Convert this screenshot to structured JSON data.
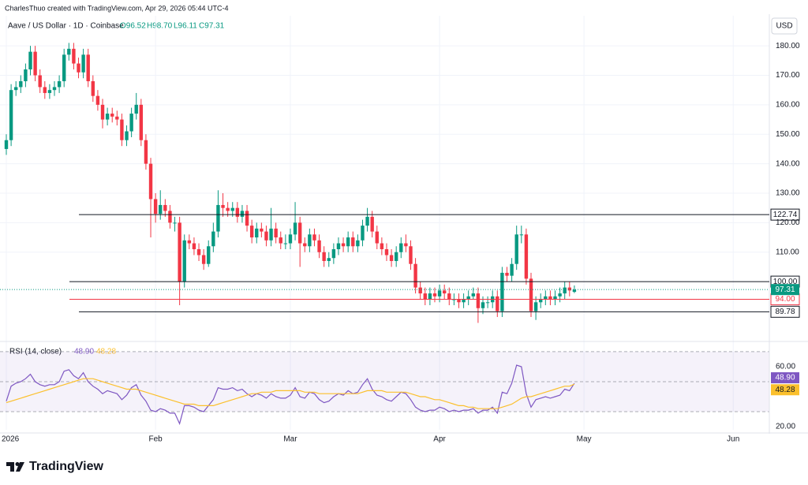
{
  "header": {
    "attribution": "CharlesThuo created with TradingView.com, Apr 29, 2026 05:44 UTC-4",
    "symbol": "Aave / US Dollar · 1D · Coinbase",
    "ohlc": [
      "O96.52",
      "H98.70",
      "L96.11",
      "C97.31"
    ],
    "currency": "USD"
  },
  "chart_data": [
    {
      "type": "candlestick",
      "up_color": "#089981",
      "down_color": "#f23645",
      "open": [
        145,
        148,
        165,
        166,
        168,
        172,
        178,
        170,
        166,
        164,
        165,
        166,
        168,
        177,
        179,
        174,
        171,
        177,
        168,
        163,
        160,
        155,
        157,
        156,
        155,
        148,
        151,
        157,
        160,
        148,
        140,
        128,
        123,
        126,
        124,
        120,
        120,
        100,
        114,
        113,
        111,
        109,
        106,
        112,
        117,
        126,
        125,
        124,
        125,
        122,
        124,
        119,
        115,
        118,
        117,
        114,
        118,
        115,
        113,
        113,
        116,
        120,
        113,
        112,
        116,
        114,
        110,
        107,
        108,
        111,
        113,
        112,
        115,
        112,
        114,
        119,
        122,
        117,
        113,
        111,
        109,
        107,
        110,
        113,
        112,
        106,
        98,
        96,
        94,
        96,
        95,
        97,
        96,
        94,
        94,
        93,
        94,
        95,
        96,
        91,
        93,
        93,
        95,
        90,
        103,
        102,
        106,
        116,
        116,
        101,
        90,
        93,
        94,
        95,
        94,
        95,
        96,
        98,
        96.52
      ],
      "high": [
        150,
        167,
        168,
        170,
        174,
        180,
        180,
        172,
        168,
        167,
        168,
        170,
        179,
        181,
        181,
        176,
        179,
        179,
        170,
        165,
        162,
        159,
        159,
        158,
        157,
        153,
        159,
        164,
        162,
        150,
        142,
        130,
        131,
        128,
        126,
        122,
        122,
        116,
        116,
        115,
        113,
        111,
        114,
        120,
        131,
        130,
        127,
        127,
        127,
        126,
        126,
        121,
        120,
        120,
        119,
        125,
        120,
        117,
        116,
        118,
        127,
        122,
        115,
        118,
        118,
        116,
        112,
        110,
        113,
        115,
        115,
        117,
        117,
        116,
        121,
        125,
        124,
        119,
        115,
        113,
        111,
        112,
        115,
        116,
        114,
        108,
        100,
        98,
        98,
        98,
        99,
        99,
        98,
        96,
        96,
        96,
        97,
        98,
        98,
        95,
        95,
        97,
        97,
        105,
        105,
        108,
        119,
        119,
        118,
        103,
        95,
        96,
        97,
        97,
        97,
        98,
        100,
        100,
        98.7
      ],
      "low": [
        143,
        146,
        163,
        164,
        166,
        170,
        168,
        164,
        162,
        162,
        163,
        164,
        166,
        175,
        172,
        169,
        169,
        166,
        161,
        158,
        152,
        153,
        154,
        153,
        146,
        146,
        149,
        155,
        146,
        138,
        115,
        120,
        121,
        122,
        118,
        117,
        92,
        98,
        111,
        109,
        107,
        104,
        105,
        110,
        115,
        122,
        122,
        122,
        120,
        120,
        117,
        113,
        113,
        115,
        112,
        112,
        113,
        111,
        111,
        111,
        114,
        105,
        110,
        110,
        112,
        108,
        105,
        105,
        106,
        109,
        110,
        110,
        110,
        110,
        112,
        117,
        115,
        111,
        109,
        107,
        105,
        105,
        108,
        110,
        104,
        96,
        94,
        92,
        92,
        93,
        93,
        94,
        92,
        92,
        91,
        91,
        92,
        94,
        86,
        89,
        91,
        91,
        88,
        88,
        100,
        100,
        104,
        113,
        99,
        88,
        87,
        91,
        92,
        92,
        92,
        93,
        94,
        95,
        96.11
      ],
      "close": [
        148,
        165,
        166,
        168,
        172,
        178,
        170,
        166,
        164,
        165,
        166,
        168,
        177,
        179,
        174,
        171,
        177,
        168,
        163,
        160,
        155,
        157,
        156,
        155,
        148,
        151,
        157,
        160,
        148,
        140,
        128,
        123,
        126,
        124,
        120,
        120,
        100,
        114,
        113,
        111,
        109,
        106,
        112,
        117,
        126,
        125,
        124,
        125,
        122,
        124,
        119,
        115,
        118,
        117,
        114,
        118,
        115,
        113,
        113,
        116,
        120,
        113,
        112,
        116,
        114,
        110,
        107,
        108,
        111,
        113,
        112,
        115,
        112,
        114,
        119,
        122,
        117,
        113,
        111,
        109,
        107,
        110,
        113,
        112,
        106,
        98,
        96,
        94,
        96,
        95,
        97,
        96,
        94,
        94,
        93,
        94,
        95,
        96,
        91,
        93,
        93,
        95,
        90,
        103,
        102,
        106,
        116,
        116,
        101,
        90,
        93,
        94,
        95,
        94,
        95,
        96,
        98,
        97,
        97.31
      ],
      "xlim": [
        0,
        158.5
      ],
      "xticks": [
        {
          "value": 0,
          "label": "2026"
        },
        {
          "value": 31,
          "label": "Feb"
        },
        {
          "value": 59,
          "label": "Mar"
        },
        {
          "value": 90,
          "label": "Apr"
        },
        {
          "value": 120,
          "label": "May"
        },
        {
          "value": 151,
          "label": "Jun"
        }
      ],
      "ylim": [
        80.5,
        190.2
      ],
      "yticks": [
        {
          "value": 110,
          "label": "110.00"
        },
        {
          "value": 120,
          "label": "120.00"
        },
        {
          "value": 130,
          "label": "130.00"
        },
        {
          "value": 140,
          "label": "140.00"
        },
        {
          "value": 150,
          "label": "150.00"
        },
        {
          "value": 160,
          "label": "160.00"
        },
        {
          "value": 170,
          "label": "170.00"
        },
        {
          "value": 180,
          "label": "180.00"
        }
      ],
      "grid": true,
      "hlines": [
        122.74,
        {
          "value": 100,
          "label": "100.00"
        },
        {
          "value": 94,
          "label": "94.00"
        },
        89.78
      ],
      "hline_colors": [
        "#131722",
        "#131722",
        "#f23645",
        "#131722"
      ]
    },
    {
      "type": "line",
      "title": "RSI (14, close)",
      "series": [
        {
          "color": "#7e57c2",
          "last_label": "48.90",
          "values": [
            37,
            47,
            49,
            50,
            52,
            55,
            50,
            48,
            47,
            48,
            48,
            50,
            57,
            58,
            54,
            52,
            56,
            50,
            47,
            45,
            42,
            44,
            43,
            42,
            38,
            41,
            46,
            48,
            41,
            37,
            31,
            30,
            32,
            31,
            29,
            29,
            22,
            34,
            34,
            33,
            31,
            30,
            34,
            38,
            46,
            45,
            45,
            46,
            44,
            45,
            42,
            40,
            42,
            41,
            39,
            42,
            40,
            39,
            39,
            41,
            46,
            40,
            39,
            43,
            42,
            38,
            36,
            37,
            40,
            42,
            41,
            44,
            42,
            43,
            48,
            52,
            45,
            41,
            40,
            38,
            37,
            40,
            43,
            42,
            38,
            33,
            31,
            30,
            31,
            31,
            33,
            32,
            30,
            31,
            30,
            31,
            31,
            32,
            29,
            31,
            31,
            33,
            29,
            43,
            42,
            49,
            61,
            60,
            42,
            33,
            38,
            39,
            40,
            39,
            40,
            41,
            45,
            44,
            48.9
          ]
        },
        {
          "color": "#fbc02d",
          "last_label": "48.28",
          "values": [
            36,
            37,
            38,
            39,
            40,
            41,
            42,
            43,
            44,
            45,
            46,
            47,
            48,
            49,
            50,
            51,
            52,
            52,
            52,
            51,
            50,
            49,
            48,
            47,
            46,
            45,
            45,
            45,
            44,
            43,
            42,
            41,
            40,
            39,
            38,
            37,
            36,
            35,
            35,
            35,
            34,
            34,
            34,
            34,
            35,
            36,
            37,
            38,
            39,
            40,
            41,
            42,
            42,
            43,
            43,
            43,
            44,
            44,
            44,
            44,
            44,
            44,
            43,
            43,
            43,
            42,
            42,
            42,
            42,
            42,
            42,
            42,
            42,
            42,
            43,
            44,
            44,
            44,
            44,
            43,
            43,
            43,
            43,
            43,
            42,
            41,
            40,
            40,
            39,
            38,
            38,
            37,
            36,
            35,
            34,
            34,
            33,
            33,
            32,
            32,
            32,
            32,
            32,
            33,
            34,
            35,
            37,
            39,
            40,
            40,
            41,
            42,
            43,
            44,
            45,
            46,
            47,
            47,
            48.28
          ]
        }
      ],
      "ylim": [
        17.9,
        74.7
      ],
      "yticks": [
        {
          "value": 60,
          "label": "60.00"
        },
        {
          "value": 20,
          "label": "20.00"
        }
      ],
      "levels": [
        70,
        50,
        30
      ],
      "band_color": "#7e57c2"
    }
  ],
  "footer": {
    "brand": "TradingView"
  }
}
